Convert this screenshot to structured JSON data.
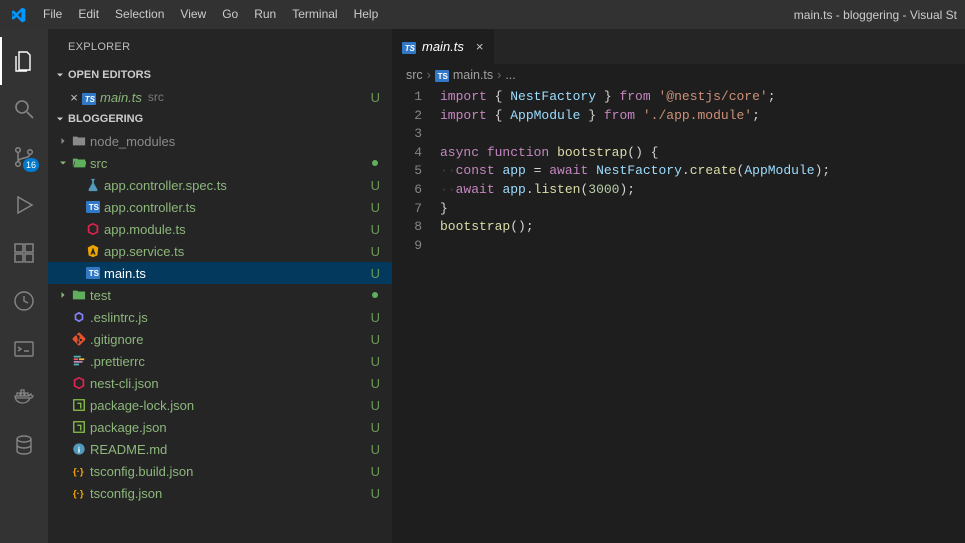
{
  "window_title": "main.ts - bloggering - Visual St",
  "menu": [
    "File",
    "Edit",
    "Selection",
    "View",
    "Go",
    "Run",
    "Terminal",
    "Help"
  ],
  "activitybar": {
    "items": [
      {
        "name": "explorer",
        "active": true
      },
      {
        "name": "search",
        "active": false
      },
      {
        "name": "source-control",
        "active": false,
        "badge": "16"
      },
      {
        "name": "run-debug",
        "active": false
      },
      {
        "name": "extensions",
        "active": false
      },
      {
        "name": "remote",
        "active": false
      },
      {
        "name": "output-panel",
        "active": false
      },
      {
        "name": "docker",
        "active": false
      },
      {
        "name": "database",
        "active": false
      }
    ]
  },
  "sidebar": {
    "title": "EXPLORER",
    "open_editors_label": "OPEN EDITORS",
    "open_editor": {
      "filename": "main.ts",
      "path": "src",
      "status": "U"
    },
    "project_label": "BLOGGERING",
    "tree": [
      {
        "kind": "folder",
        "name": "node_modules",
        "indent": 0,
        "expanded": false,
        "git": "dim"
      },
      {
        "kind": "folder",
        "name": "src",
        "indent": 0,
        "expanded": true,
        "git": "green",
        "dot": "#5faf5c"
      },
      {
        "kind": "file",
        "name": "app.controller.spec.ts",
        "indent": 1,
        "icon": "flask",
        "iconColor": "#519aba",
        "git": "green",
        "status": "U"
      },
      {
        "kind": "file",
        "name": "app.controller.ts",
        "indent": 1,
        "icon": "ts",
        "iconColor": "#3178c6",
        "git": "green",
        "status": "U"
      },
      {
        "kind": "file",
        "name": "app.module.ts",
        "indent": 1,
        "icon": "nest",
        "iconColor": "#e0234e",
        "git": "green",
        "status": "U"
      },
      {
        "kind": "file",
        "name": "app.service.ts",
        "indent": 1,
        "icon": "a",
        "iconColor": "#f0a500",
        "git": "green",
        "status": "U"
      },
      {
        "kind": "file",
        "name": "main.ts",
        "indent": 1,
        "icon": "ts",
        "iconColor": "#3178c6",
        "git": "green",
        "status": "U",
        "selected": true
      },
      {
        "kind": "folder",
        "name": "test",
        "indent": 0,
        "expanded": false,
        "git": "green",
        "dot": "#5faf5c"
      },
      {
        "kind": "file",
        "name": ".eslintrc.js",
        "indent": 0,
        "icon": "eslint",
        "iconColor": "#8080f2",
        "git": "green",
        "status": "U"
      },
      {
        "kind": "file",
        "name": ".gitignore",
        "indent": 0,
        "icon": "git",
        "iconColor": "#e8532f",
        "git": "green",
        "status": "U"
      },
      {
        "kind": "file",
        "name": ".prettierrc",
        "indent": 0,
        "icon": "prettier",
        "iconColor": "#c596c7",
        "git": "green",
        "status": "U"
      },
      {
        "kind": "file",
        "name": "nest-cli.json",
        "indent": 0,
        "icon": "nest",
        "iconColor": "#e0234e",
        "git": "green",
        "status": "U"
      },
      {
        "kind": "file",
        "name": "package-lock.json",
        "indent": 0,
        "icon": "npm",
        "iconColor": "#8bc34a",
        "git": "green",
        "status": "U"
      },
      {
        "kind": "file",
        "name": "package.json",
        "indent": 0,
        "icon": "npm",
        "iconColor": "#8bc34a",
        "git": "green",
        "status": "U"
      },
      {
        "kind": "file",
        "name": "README.md",
        "indent": 0,
        "icon": "info",
        "iconColor": "#519aba",
        "git": "green",
        "status": "U"
      },
      {
        "kind": "file",
        "name": "tsconfig.build.json",
        "indent": 0,
        "icon": "tsconfig",
        "iconColor": "#f0a500",
        "git": "green",
        "status": "U"
      },
      {
        "kind": "file",
        "name": "tsconfig.json",
        "indent": 0,
        "icon": "tsconfig",
        "iconColor": "#f0a500",
        "git": "green",
        "status": "U"
      }
    ]
  },
  "editor": {
    "tab": {
      "filename": "main.ts"
    },
    "breadcrumbs": [
      "src",
      "main.ts",
      "..."
    ],
    "line_numbers": [
      "1",
      "2",
      "3",
      "4",
      "5",
      "6",
      "7",
      "8",
      "9"
    ],
    "code": [
      [
        [
          "kw",
          "import"
        ],
        [
          "punc",
          " { "
        ],
        [
          "id",
          "NestFactory"
        ],
        [
          "punc",
          " } "
        ],
        [
          "kw",
          "from"
        ],
        [
          "punc",
          " "
        ],
        [
          "str",
          "'@nestjs/core'"
        ],
        [
          "punc",
          ";"
        ]
      ],
      [
        [
          "kw",
          "import"
        ],
        [
          "punc",
          " { "
        ],
        [
          "id",
          "AppModule"
        ],
        [
          "punc",
          " } "
        ],
        [
          "kw",
          "from"
        ],
        [
          "punc",
          " "
        ],
        [
          "str",
          "'./app.module'"
        ],
        [
          "punc",
          ";"
        ]
      ],
      [],
      [
        [
          "kw",
          "async"
        ],
        [
          "punc",
          " "
        ],
        [
          "kw",
          "function"
        ],
        [
          "punc",
          " "
        ],
        [
          "fn",
          "bootstrap"
        ],
        [
          "punc",
          "() {"
        ]
      ],
      [
        [
          "ghost",
          "··"
        ],
        [
          "kw",
          "const"
        ],
        [
          "punc",
          " "
        ],
        [
          "id",
          "app"
        ],
        [
          "punc",
          " = "
        ],
        [
          "kw",
          "await"
        ],
        [
          "punc",
          " "
        ],
        [
          "id",
          "NestFactory"
        ],
        [
          "punc",
          "."
        ],
        [
          "fn",
          "create"
        ],
        [
          "punc",
          "("
        ],
        [
          "id",
          "AppModule"
        ],
        [
          "punc",
          ");"
        ]
      ],
      [
        [
          "ghost",
          "··"
        ],
        [
          "kw",
          "await"
        ],
        [
          "punc",
          " "
        ],
        [
          "id",
          "app"
        ],
        [
          "punc",
          "."
        ],
        [
          "fn",
          "listen"
        ],
        [
          "punc",
          "("
        ],
        [
          "num",
          "3000"
        ],
        [
          "punc",
          ");"
        ]
      ],
      [
        [
          "punc",
          "}"
        ]
      ],
      [
        [
          "fn",
          "bootstrap"
        ],
        [
          "punc",
          "();"
        ]
      ],
      []
    ]
  },
  "colors": {
    "git_green": "#8db77b",
    "badge_bg": "#007acc",
    "selected_bg": "#04395e"
  }
}
